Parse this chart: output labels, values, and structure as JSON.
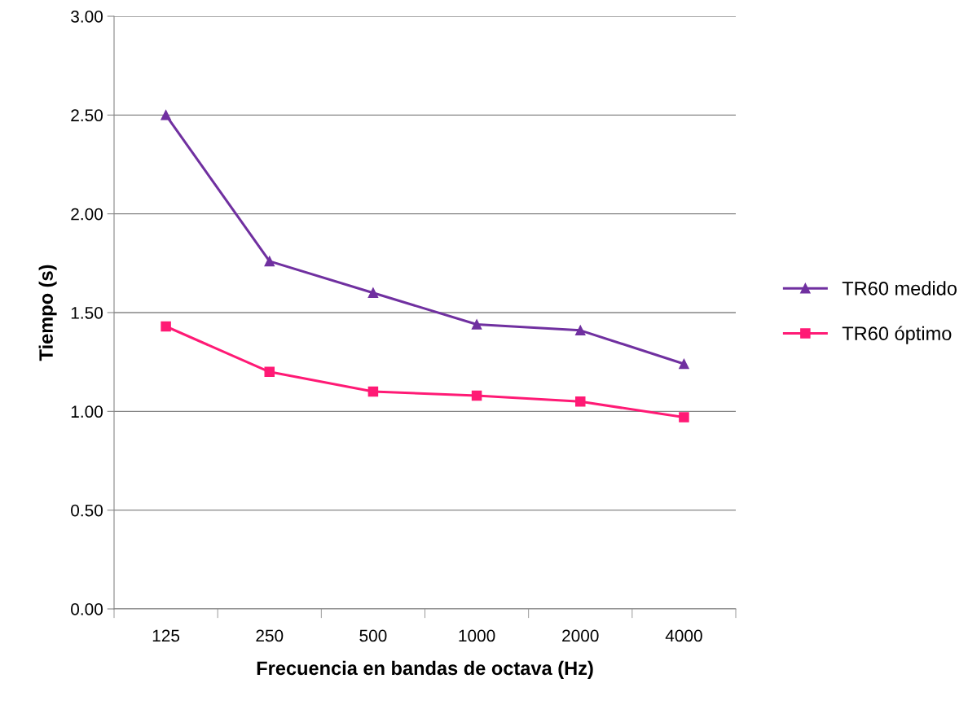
{
  "chart_data": {
    "type": "line",
    "xlabel": "Frecuencia en bandas de octava (Hz)",
    "ylabel": "Tiempo (s)",
    "categories": [
      "125",
      "250",
      "500",
      "1000",
      "2000",
      "4000"
    ],
    "series": [
      {
        "name": "TR60 medido",
        "color": "#7030a0",
        "marker": "triangle",
        "values": [
          2.5,
          1.76,
          1.6,
          1.44,
          1.41,
          1.24
        ]
      },
      {
        "name": "TR60 óptimo",
        "color": "#ff1a75",
        "marker": "square",
        "values": [
          1.43,
          1.2,
          1.1,
          1.08,
          1.05,
          0.97
        ]
      }
    ],
    "ylim": [
      0,
      3
    ],
    "yticks": [
      {
        "value": 0,
        "label": "0.00"
      },
      {
        "value": 0.5,
        "label": "0.50"
      },
      {
        "value": 1,
        "label": "1.00"
      },
      {
        "value": 1.5,
        "label": "1.50"
      },
      {
        "value": 2,
        "label": "2.00"
      },
      {
        "value": 2.5,
        "label": "2.50"
      },
      {
        "value": 3,
        "label": "3.00"
      }
    ],
    "grid": "y",
    "legend": "right",
    "line_style": "solid"
  }
}
